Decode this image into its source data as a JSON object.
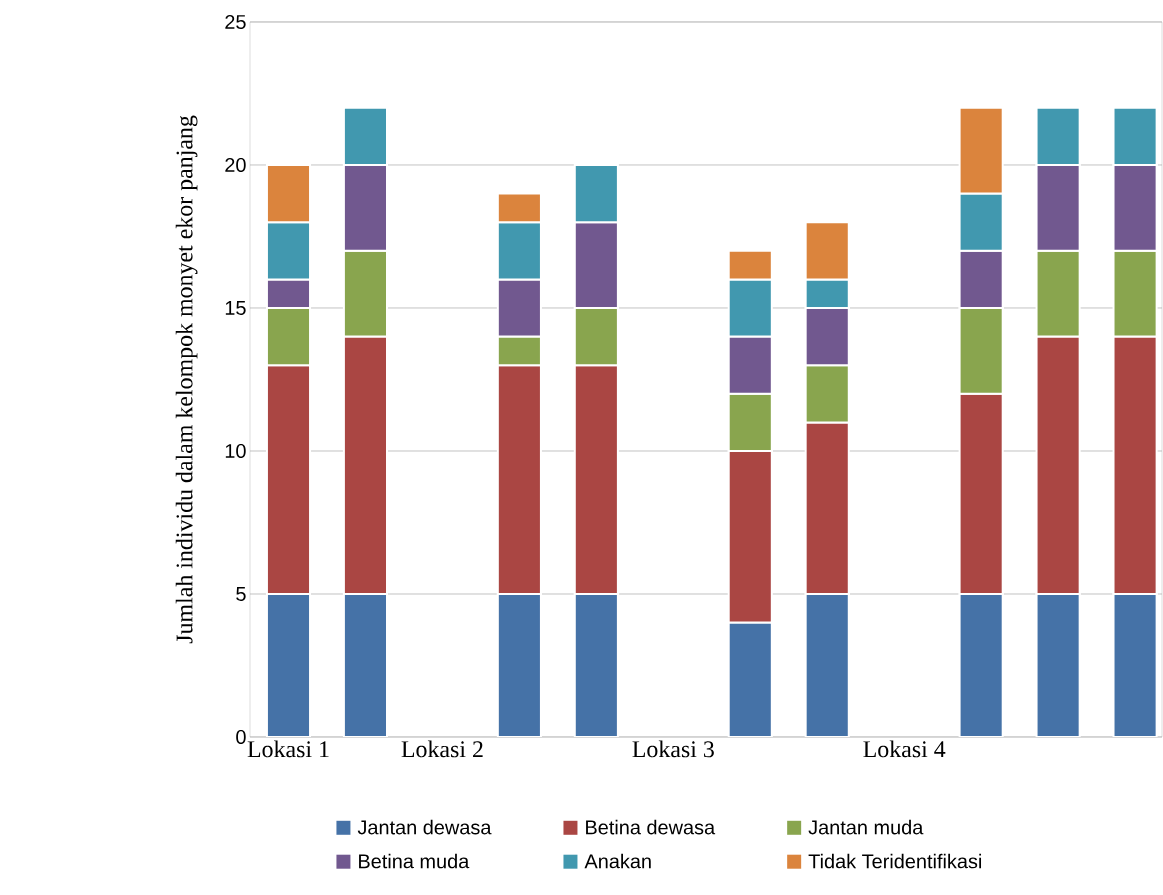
{
  "chart_data": {
    "type": "bar",
    "stacked": true,
    "ylabel": "Jumlah individu dalam kelompok monyet ekor panjang",
    "categories": [
      "Lokasi 1",
      null,
      "Lokasi 2",
      null,
      null,
      "Lokasi 3",
      null,
      null,
      "Lokasi 4",
      null,
      null,
      null
    ],
    "series": [
      {
        "name": "Jantan dewasa",
        "color": "#4572a7",
        "values": [
          5,
          5,
          null,
          5,
          5,
          null,
          4,
          5,
          null,
          5,
          5,
          5
        ]
      },
      {
        "name": "Betina dewasa",
        "color": "#aa4643",
        "values": [
          8,
          9,
          null,
          8,
          8,
          null,
          6,
          6,
          null,
          7,
          9,
          9
        ]
      },
      {
        "name": "Jantan muda",
        "color": "#89a54e",
        "values": [
          2,
          3,
          null,
          1,
          2,
          null,
          2,
          2,
          null,
          3,
          3,
          3
        ]
      },
      {
        "name": "Betina muda",
        "color": "#71588f",
        "values": [
          1,
          3,
          null,
          2,
          3,
          null,
          2,
          2,
          null,
          2,
          3,
          3
        ]
      },
      {
        "name": "Anakan",
        "color": "#4198af",
        "values": [
          2,
          2,
          null,
          2,
          2,
          null,
          2,
          1,
          null,
          2,
          2,
          2
        ]
      },
      {
        "name": "Tidak Teridentifikasi",
        "color": "#db843d",
        "values": [
          2,
          null,
          null,
          1,
          null,
          null,
          1,
          2,
          null,
          3,
          null,
          null
        ]
      }
    ],
    "ylim": [
      0,
      25
    ],
    "yticks": [
      0,
      5,
      10,
      15,
      20,
      25
    ],
    "grid": "y",
    "legend": "bottom"
  }
}
